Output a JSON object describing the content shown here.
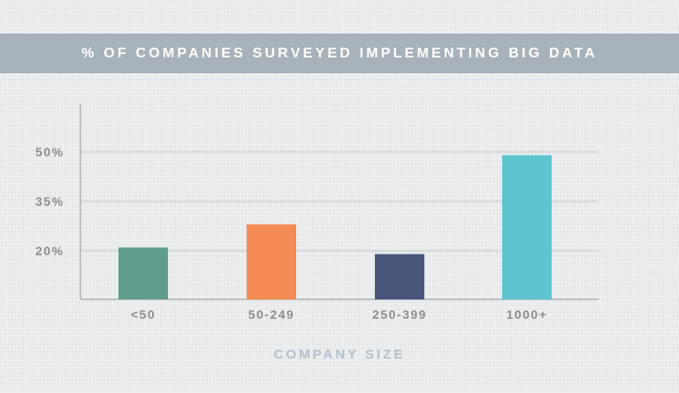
{
  "chart_data": {
    "type": "bar",
    "title": "% OF COMPANIES SURVEYED IMPLEMENTING BIG DATA",
    "xlabel": "COMPANY SIZE",
    "ylabel": "",
    "categories": [
      "<50",
      "50-249",
      "250-399",
      "1000+"
    ],
    "values": [
      21,
      28,
      19,
      49
    ],
    "ylim": [
      5,
      65
    ],
    "yticks": [
      20,
      35,
      50
    ],
    "ytick_labels": [
      "20%",
      "35%",
      "50%"
    ],
    "grid": true,
    "legend": "none"
  },
  "colors": {
    "title_banner": "#a8b2bb",
    "title_text": "#ffffff",
    "bars": [
      "#5f9e8e",
      "#f58c55",
      "#47567a",
      "#5cc5ce"
    ],
    "tick_text": "#8a8f94",
    "axis_title": "#b5c0c9",
    "grid": "#c2c6ca",
    "axis": "#8f959b"
  }
}
